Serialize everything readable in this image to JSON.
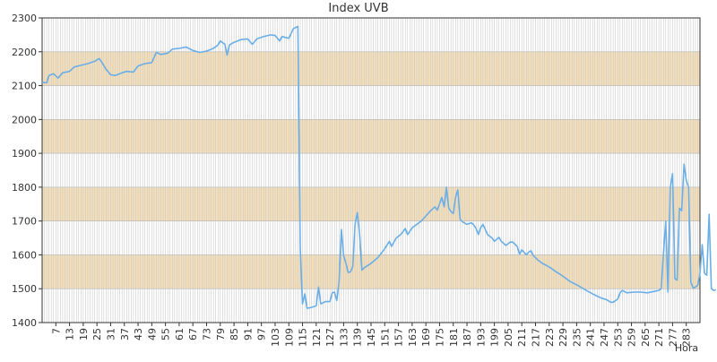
{
  "chart_data": {
    "type": "line",
    "title": "Index UVB",
    "xlabel": "Hora",
    "ylabel": "",
    "ylim": [
      1400,
      2300
    ],
    "xlim": [
      1,
      289
    ],
    "y_ticks": [
      1400,
      1500,
      1600,
      1700,
      1800,
      1900,
      2000,
      2100,
      2200,
      2300
    ],
    "x_ticks": [
      7,
      13,
      19,
      25,
      31,
      37,
      43,
      49,
      55,
      61,
      67,
      73,
      79,
      85,
      91,
      97,
      103,
      109,
      115,
      121,
      127,
      133,
      139,
      145,
      151,
      157,
      163,
      169,
      175,
      181,
      187,
      193,
      199,
      205,
      211,
      217,
      223,
      229,
      235,
      241,
      247,
      253,
      259,
      265,
      271,
      277,
      283
    ],
    "grid": true,
    "band_colors": {
      "shaded": "#f5dfb8",
      "plain": "#ffffff"
    },
    "line_color": "#6aaee8",
    "gridline_color": "#c8c8c8",
    "series": [
      {
        "values": [
          [
            1,
            2110
          ],
          [
            3,
            2108
          ],
          [
            4,
            2130
          ],
          [
            6,
            2135
          ],
          [
            8,
            2122
          ],
          [
            10,
            2138
          ],
          [
            13,
            2142
          ],
          [
            15,
            2155
          ],
          [
            18,
            2160
          ],
          [
            21,
            2165
          ],
          [
            24,
            2172
          ],
          [
            26,
            2180
          ],
          [
            27,
            2170
          ],
          [
            29,
            2148
          ],
          [
            31,
            2132
          ],
          [
            33,
            2130
          ],
          [
            36,
            2138
          ],
          [
            38,
            2142
          ],
          [
            41,
            2140
          ],
          [
            43,
            2158
          ],
          [
            46,
            2165
          ],
          [
            49,
            2168
          ],
          [
            51,
            2198
          ],
          [
            53,
            2192
          ],
          [
            56,
            2196
          ],
          [
            58,
            2208
          ],
          [
            61,
            2210
          ],
          [
            64,
            2214
          ],
          [
            67,
            2204
          ],
          [
            70,
            2198
          ],
          [
            73,
            2202
          ],
          [
            76,
            2210
          ],
          [
            78,
            2220
          ],
          [
            79,
            2232
          ],
          [
            81,
            2222
          ],
          [
            82,
            2190
          ],
          [
            83,
            2220
          ],
          [
            85,
            2228
          ],
          [
            88,
            2236
          ],
          [
            91,
            2238
          ],
          [
            93,
            2222
          ],
          [
            95,
            2238
          ],
          [
            98,
            2245
          ],
          [
            101,
            2250
          ],
          [
            103,
            2248
          ],
          [
            105,
            2232
          ],
          [
            106,
            2245
          ],
          [
            109,
            2240
          ],
          [
            111,
            2268
          ],
          [
            113,
            2275
          ],
          [
            114,
            1620
          ],
          [
            115,
            1455
          ],
          [
            116,
            1485
          ],
          [
            117,
            1442
          ],
          [
            119,
            1445
          ],
          [
            121,
            1450
          ],
          [
            122,
            1505
          ],
          [
            123,
            1455
          ],
          [
            125,
            1462
          ],
          [
            127,
            1462
          ],
          [
            128,
            1488
          ],
          [
            129,
            1490
          ],
          [
            130,
            1465
          ],
          [
            131,
            1520
          ],
          [
            132,
            1675
          ],
          [
            133,
            1598
          ],
          [
            134,
            1575
          ],
          [
            135,
            1548
          ],
          [
            136,
            1550
          ],
          [
            137,
            1565
          ],
          [
            138,
            1690
          ],
          [
            139,
            1725
          ],
          [
            140,
            1660
          ],
          [
            141,
            1555
          ],
          [
            142,
            1562
          ],
          [
            145,
            1575
          ],
          [
            148,
            1592
          ],
          [
            151,
            1618
          ],
          [
            153,
            1640
          ],
          [
            154,
            1625
          ],
          [
            156,
            1650
          ],
          [
            158,
            1660
          ],
          [
            160,
            1678
          ],
          [
            161,
            1660
          ],
          [
            163,
            1680
          ],
          [
            165,
            1690
          ],
          [
            167,
            1700
          ],
          [
            169,
            1715
          ],
          [
            171,
            1730
          ],
          [
            173,
            1742
          ],
          [
            174,
            1732
          ],
          [
            176,
            1770
          ],
          [
            177,
            1742
          ],
          [
            178,
            1800
          ],
          [
            179,
            1738
          ],
          [
            180,
            1728
          ],
          [
            181,
            1722
          ],
          [
            182,
            1770
          ],
          [
            183,
            1792
          ],
          [
            184,
            1705
          ],
          [
            185,
            1698
          ],
          [
            187,
            1690
          ],
          [
            189,
            1695
          ],
          [
            190,
            1688
          ],
          [
            191,
            1678
          ],
          [
            192,
            1660
          ],
          [
            193,
            1680
          ],
          [
            194,
            1690
          ],
          [
            196,
            1660
          ],
          [
            198,
            1650
          ],
          [
            199,
            1640
          ],
          [
            201,
            1652
          ],
          [
            202,
            1640
          ],
          [
            204,
            1628
          ],
          [
            206,
            1638
          ],
          [
            207,
            1638
          ],
          [
            209,
            1625
          ],
          [
            210,
            1602
          ],
          [
            211,
            1615
          ],
          [
            213,
            1600
          ],
          [
            214,
            1608
          ],
          [
            215,
            1612
          ],
          [
            216,
            1598
          ],
          [
            218,
            1585
          ],
          [
            220,
            1575
          ],
          [
            222,
            1568
          ],
          [
            224,
            1560
          ],
          [
            226,
            1550
          ],
          [
            228,
            1542
          ],
          [
            230,
            1532
          ],
          [
            232,
            1522
          ],
          [
            234,
            1515
          ],
          [
            236,
            1508
          ],
          [
            238,
            1500
          ],
          [
            240,
            1492
          ],
          [
            242,
            1485
          ],
          [
            244,
            1478
          ],
          [
            246,
            1472
          ],
          [
            248,
            1468
          ],
          [
            250,
            1460
          ],
          [
            251,
            1460
          ],
          [
            253,
            1470
          ],
          [
            254,
            1488
          ],
          [
            255,
            1495
          ],
          [
            257,
            1488
          ],
          [
            260,
            1490
          ],
          [
            263,
            1490
          ],
          [
            266,
            1488
          ],
          [
            269,
            1492
          ],
          [
            271,
            1495
          ],
          [
            272,
            1500
          ],
          [
            273,
            1600
          ],
          [
            274,
            1700
          ],
          [
            275,
            1490
          ],
          [
            276,
            1800
          ],
          [
            277,
            1840
          ],
          [
            278,
            1530
          ],
          [
            279,
            1525
          ],
          [
            280,
            1738
          ],
          [
            281,
            1730
          ],
          [
            282,
            1868
          ],
          [
            283,
            1820
          ],
          [
            284,
            1800
          ],
          [
            285,
            1520
          ],
          [
            286,
            1502
          ],
          [
            287,
            1505
          ],
          [
            288,
            1510
          ],
          [
            289,
            1545
          ],
          [
            290,
            1630
          ],
          [
            291,
            1545
          ]
        ]
      },
      {
        "values": [
          [
            291,
            1545
          ],
          [
            292,
            1540
          ],
          [
            293,
            1720
          ],
          [
            294,
            1500
          ],
          [
            295,
            1495
          ],
          [
            296,
            1497
          ]
        ]
      }
    ]
  }
}
